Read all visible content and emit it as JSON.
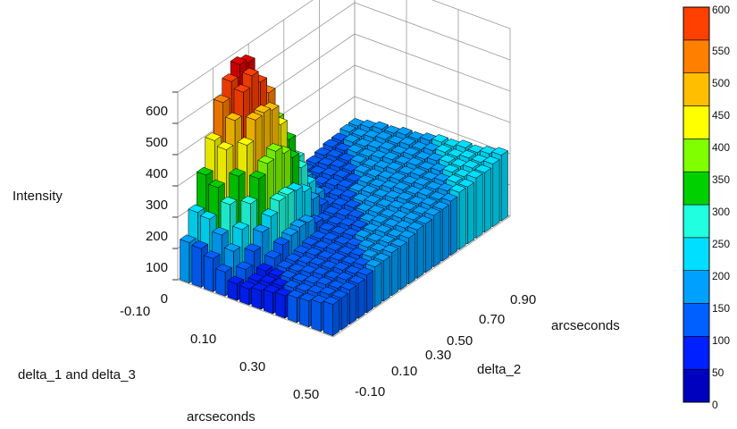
{
  "chart_data": {
    "type": "bar3d",
    "zlabel": "Intensity",
    "ylabel_lines": [
      "delta_1 and delta_3",
      "arcseconds"
    ],
    "xlabel_lines": [
      "delta_2",
      "arcseconds"
    ],
    "zticks": [
      "0",
      "100",
      "200",
      "300",
      "400",
      "500",
      "600"
    ],
    "zlim": [
      0,
      600
    ],
    "delta_1_ticks": [
      "-0.10",
      "0.10",
      "0.30",
      "0.50"
    ],
    "delta_2_ticks": [
      "-0.10",
      "0.10",
      "0.30",
      "0.50",
      "0.70",
      "0.90"
    ],
    "delta_1_range": [
      -0.1,
      0.5
    ],
    "delta_2_range": [
      -0.1,
      0.9
    ],
    "grid": true,
    "colormap": "jet",
    "colorbar": {
      "ticks": [
        "0",
        "50",
        "100",
        "150",
        "200",
        "250",
        "300",
        "350",
        "400",
        "450",
        "500",
        "550",
        "600"
      ],
      "levels": 12,
      "colors": [
        "#0000bf",
        "#0020ff",
        "#0060ff",
        "#00a0ff",
        "#00dfff",
        "#20ffdf",
        "#00d000",
        "#80ff00",
        "#ffff00",
        "#ffbf00",
        "#ff8000",
        "#ff4000",
        "#df0000"
      ]
    },
    "grid_size": {
      "rows_delta_1": 13,
      "cols_delta_2": 21
    },
    "peak_value": 600,
    "edge_values": {
      "low_delta_1_low_delta_2": 20,
      "high_delta_1_low_delta_2": 100,
      "low_delta_1_high_delta_2": 140,
      "high_delta_1_high_delta_2": 210
    }
  }
}
